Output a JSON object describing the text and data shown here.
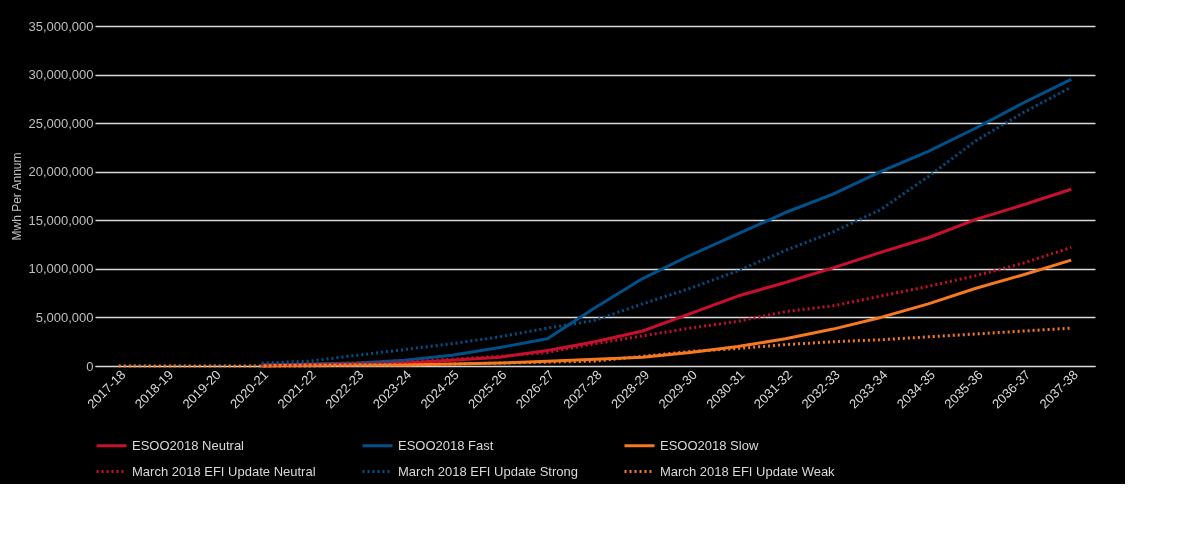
{
  "chart_data": {
    "type": "line",
    "ylabel": "Mwh Per Annum",
    "categories": [
      "2017-18",
      "2018-19",
      "2019-20",
      "2020-21",
      "2021-22",
      "2022-23",
      "2023-24",
      "2024-25",
      "2025-26",
      "2026-27",
      "2027-28",
      "2028-29",
      "2029-30",
      "2030-31",
      "2031-32",
      "2032-33",
      "2033-34",
      "2034-35",
      "2035-36",
      "2036-37",
      "2037-38"
    ],
    "series": [
      {
        "name": "ESOO2018 Neutral",
        "color": "#c8102e",
        "line_style": "solid",
        "values": [
          null,
          null,
          null,
          100000,
          100000,
          200000,
          300000,
          600000,
          900000,
          1600000,
          2500000,
          3600000,
          5400000,
          7200000,
          8600000,
          10100000,
          11700000,
          13200000,
          15100000,
          16600000,
          18200000
        ]
      },
      {
        "name": "ESOO2018 Fast",
        "color": "#00508a",
        "line_style": "solid",
        "values": [
          null,
          null,
          null,
          100000,
          200000,
          300000,
          600000,
          1100000,
          1900000,
          2800000,
          6000000,
          9000000,
          11400000,
          13600000,
          15800000,
          17700000,
          20000000,
          22100000,
          24500000,
          27100000,
          29500000
        ]
      },
      {
        "name": "ESOO2018 Slow",
        "color": "#f47920",
        "line_style": "solid",
        "values": [
          null,
          null,
          null,
          0,
          100000,
          100000,
          100000,
          200000,
          300000,
          500000,
          700000,
          900000,
          1400000,
          2000000,
          2800000,
          3800000,
          5000000,
          6400000,
          8000000,
          9400000,
          10900000
        ]
      },
      {
        "name": "March 2018 EFI Update Neutral",
        "color": "#c8102e",
        "line_style": "dotted",
        "values": [
          null,
          null,
          null,
          100000,
          200000,
          300000,
          400000,
          700000,
          1000000,
          1400000,
          2300000,
          3100000,
          3900000,
          4600000,
          5600000,
          6200000,
          7200000,
          8200000,
          9300000,
          10600000,
          12200000
        ]
      },
      {
        "name": "March 2018 EFI Update Strong",
        "color": "#00508a",
        "line_style": "dotted",
        "values": [
          null,
          null,
          null,
          300000,
          500000,
          1100000,
          1700000,
          2300000,
          3000000,
          3900000,
          4700000,
          6400000,
          8000000,
          9800000,
          11900000,
          13800000,
          16100000,
          19500000,
          23200000,
          26100000,
          28700000
        ]
      },
      {
        "name": "March 2018 EFI Update Weak",
        "color": "#f47920",
        "line_style": "dotted",
        "values": [
          0,
          0,
          0,
          0,
          0,
          100000,
          100000,
          200000,
          300000,
          400000,
          500000,
          1000000,
          1500000,
          1800000,
          2200000,
          2500000,
          2700000,
          3000000,
          3300000,
          3600000,
          3900000
        ]
      }
    ],
    "ylim": [
      0,
      35000000
    ],
    "yticks": [
      0,
      {
        "value": 5000000,
        "label": "5,000,000"
      },
      {
        "value": 10000000,
        "label": "10,000,000"
      },
      {
        "value": 15000000,
        "label": "15,000,000"
      },
      {
        "value": 20000000,
        "label": "20,000,000"
      },
      {
        "value": 25000000,
        "label": "25,000,000"
      },
      {
        "value": 30000000,
        "label": "30,000,000"
      },
      {
        "value": 35000000,
        "label": "35,000,000"
      }
    ],
    "grid": "y",
    "legend": "bottom"
  }
}
